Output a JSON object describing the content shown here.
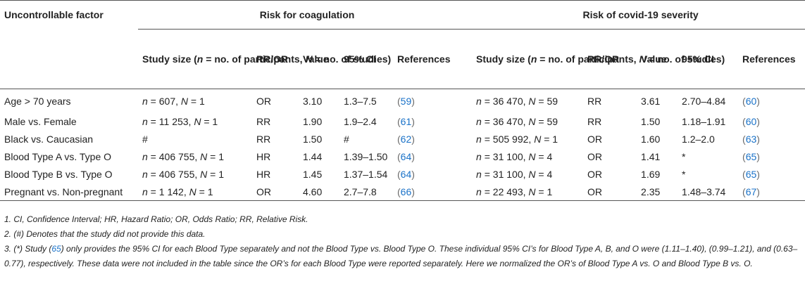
{
  "header": {
    "factor_col": "Uncontrollable factor",
    "group_coag": "Risk for coagulation",
    "group_covid": "Risk of covid-19 severity",
    "sub_study_size": "Study size (n = no. of participants, N = no. of studies)",
    "sub_study_size_parts": [
      "Study size (",
      "n",
      " = no. of participants, ",
      "N",
      " = no. of studies)"
    ],
    "sub_rr_or": "RR/OR",
    "sub_value": "Value",
    "sub_ci": "95% CI",
    "sub_refs": "References"
  },
  "rows": [
    {
      "factor": "Age > 70 years",
      "c_n": "607",
      "c_N": "1",
      "c_type": "OR",
      "c_value": "3.10",
      "c_ci": "1.3–7.5",
      "c_ref": "59",
      "v_n": "36 470",
      "v_N": "59",
      "v_type": "RR",
      "v_value": "3.61",
      "v_ci": "2.70–4.84",
      "v_ref": "60"
    },
    {
      "factor": "Male vs. Female",
      "c_n": "11 253",
      "c_N": "1",
      "c_type": "RR",
      "c_value": "1.90",
      "c_ci": "1.9–2.4",
      "c_ref": "61",
      "v_n": "36 470",
      "v_N": "59",
      "v_type": "RR",
      "v_value": "1.50",
      "v_ci": "1.18–1.91",
      "v_ref": "60"
    },
    {
      "factor": "Black vs. Caucasian",
      "c_size_text": "#",
      "c_type": "RR",
      "c_value": "1.50",
      "c_ci": "#",
      "c_ref": "62",
      "v_n": "505 992",
      "v_N": "1",
      "v_type": "OR",
      "v_value": "1.60",
      "v_ci": "1.2–2.0",
      "v_ref": "63"
    },
    {
      "factor": "Blood Type A vs. Type O",
      "c_n": "406 755",
      "c_N": "1",
      "c_type": "HR",
      "c_value": "1.44",
      "c_ci": "1.39–1.50",
      "c_ref": "64",
      "v_n": "31 100",
      "v_N": "4",
      "v_type": "OR",
      "v_value": "1.41",
      "v_ci": "*",
      "v_ref": "65"
    },
    {
      "factor": "Blood Type B vs. Type O",
      "c_n": "406 755",
      "c_N": "1",
      "c_type": "HR",
      "c_value": "1.45",
      "c_ci": "1.37–1.54",
      "c_ref": "64",
      "v_n": "31 100",
      "v_N": "4",
      "v_type": "OR",
      "v_value": "1.69",
      "v_ci": "*",
      "v_ref": "65"
    },
    {
      "factor": "Pregnant vs. Non-pregnant",
      "c_n": "1 142",
      "c_N": "1",
      "c_type": "OR",
      "c_value": "4.60",
      "c_ci": "2.7–7.8",
      "c_ref": "66",
      "v_n": "22 493",
      "v_N": "1",
      "v_type": "OR",
      "v_value": "2.35",
      "v_ci": "1.48–3.74",
      "v_ref": "67"
    }
  ],
  "notes": {
    "note1": "1. CI, Confidence Interval; HR, Hazard Ratio; OR, Odds Ratio; RR, Relative Risk.",
    "note2": "2. (#) Denotes that the study did not provide this data.",
    "note3_a": "3. (*) Study (",
    "note3_ref": "65",
    "note3_b": ") only provides the 95% CI for each Blood Type separately and not the Blood Type vs. Blood Type O. These individual 95% CI’s for Blood Type A, B, and O were (1.11–1.40), (0.99–1.21), and (0.63–0.77), respectively. These data were not included in the table since the OR’s for each Blood Type were reported separately. Here we normalized the OR’s of Blood Type A vs. O and Blood Type B vs. O."
  },
  "colors": {
    "text": "#222222",
    "link": "#1a72c8",
    "rule": "#555555"
  }
}
